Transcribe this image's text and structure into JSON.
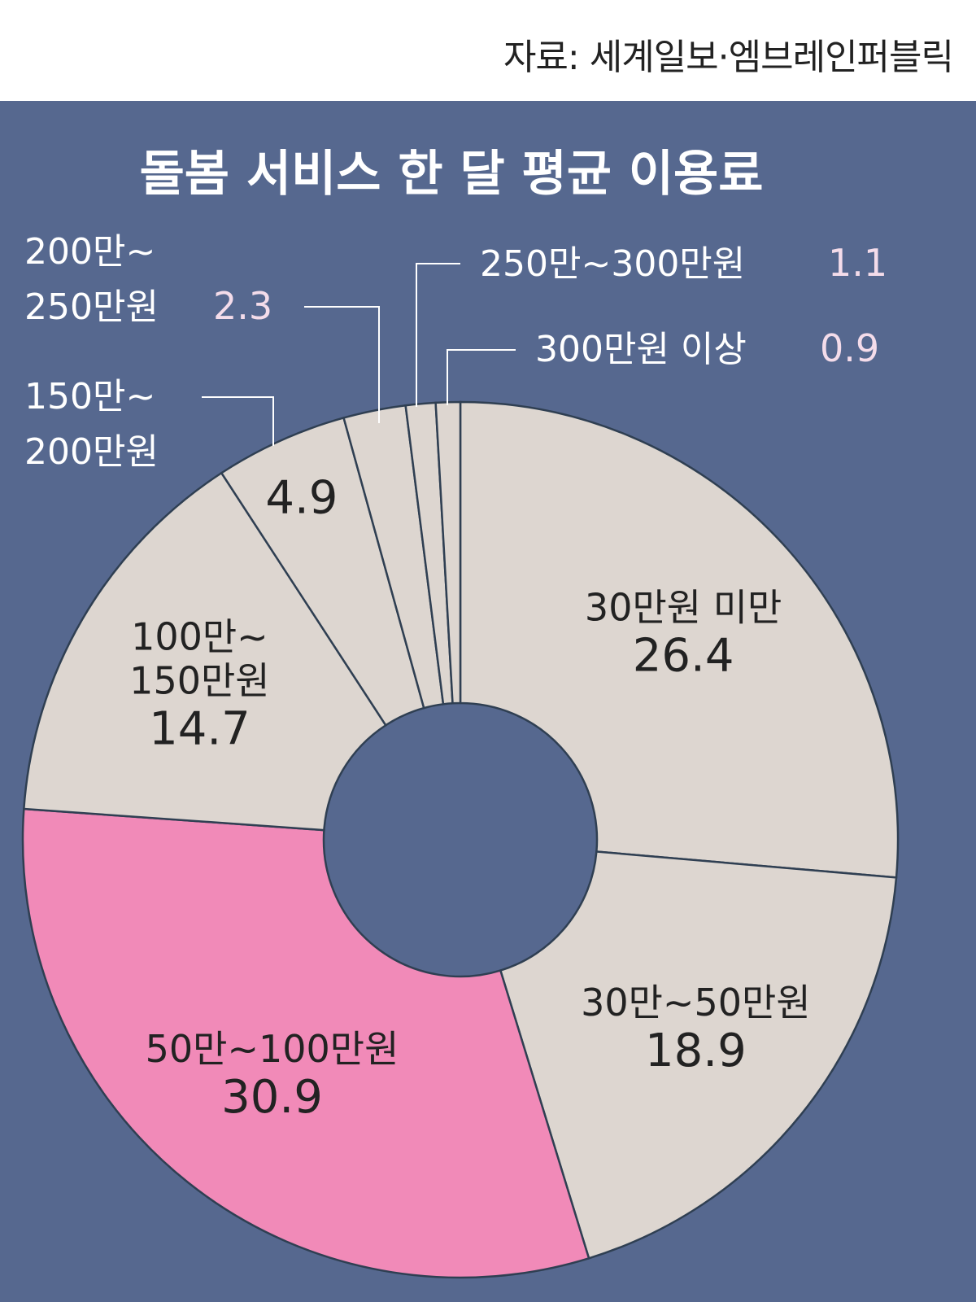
{
  "source": "자료: 세계일보·엠브레인퍼블릭",
  "colors": {
    "background": "#56688f",
    "slice": "#ddd6d0",
    "highlight": "#f18ab8",
    "outline": "#2f3f52",
    "leader": "#ffffff",
    "value_accent": "#f4dcea"
  },
  "chart_data": {
    "type": "pie",
    "title": "돌봄 서비스 한 달 평균 이용료",
    "donut": true,
    "categories": [
      "30만원 미만",
      "30만~50만원",
      "50만~100만원",
      "100만~150만원",
      "150만~200만원",
      "200만~250만원",
      "250만~300만원",
      "300만원 이상"
    ],
    "values": [
      26.4,
      18.9,
      30.9,
      14.7,
      4.9,
      2.3,
      1.1,
      0.9
    ],
    "value_labels": [
      "26.4",
      "18.9",
      "30.9",
      "14.7",
      "4.9",
      "2.3",
      "1.1",
      "0.9"
    ],
    "label_lines": [
      [
        "30만원 미만"
      ],
      [
        "30만~50만원"
      ],
      [
        "50만~100만원"
      ],
      [
        "100만~",
        "150만원"
      ],
      [
        "150만~",
        "200만원"
      ],
      [
        "200만~",
        "250만원"
      ],
      [
        "250만~300만원"
      ],
      [
        "300만원 이상"
      ]
    ],
    "highlight": "50만~100만원"
  }
}
